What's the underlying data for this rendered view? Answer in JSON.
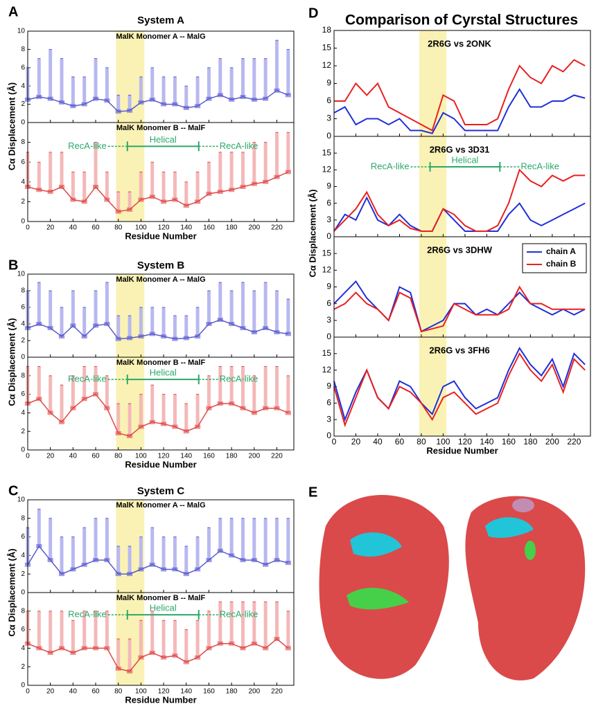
{
  "chart_data": [
    {
      "type": "box",
      "panel_label": "A",
      "title": "System A",
      "y_label": "Cα Displacement (Å)",
      "x_label": "Residue Number",
      "xlim": [
        0,
        235
      ],
      "xticks": [
        0,
        20,
        40,
        60,
        80,
        100,
        120,
        140,
        160,
        180,
        200,
        220
      ],
      "highlight": [
        78,
        103
      ],
      "x": [
        0,
        10,
        20,
        30,
        40,
        50,
        60,
        70,
        80,
        90,
        100,
        110,
        120,
        130,
        140,
        150,
        160,
        170,
        180,
        190,
        200,
        210,
        220,
        230
      ],
      "subplots": [
        {
          "label": "MalK Monomer A -- MalG",
          "color": "#5a5ad0",
          "whisker_color": "#b8b8f0",
          "ylim": [
            0,
            10
          ],
          "yticks": [
            0,
            2,
            4,
            6,
            8,
            10
          ],
          "values": [
            2.5,
            2.8,
            2.6,
            2.2,
            1.8,
            2.0,
            2.6,
            2.4,
            1.2,
            1.3,
            2.2,
            2.5,
            2.0,
            2.0,
            1.6,
            1.8,
            2.6,
            3.0,
            2.5,
            2.8,
            2.5,
            2.6,
            3.5,
            3.0
          ],
          "upper": [
            6,
            7,
            8,
            7,
            5,
            5,
            7,
            6,
            3,
            3,
            5,
            6,
            5,
            5,
            4,
            5,
            6,
            7,
            6,
            7,
            7,
            7,
            9,
            8
          ]
        },
        {
          "label": "MalK Monomer B -- MalF",
          "color": "#e04848",
          "whisker_color": "#f4b8b8",
          "ylim": [
            0,
            10
          ],
          "yticks": [
            0,
            2,
            4,
            6,
            8
          ],
          "values": [
            3.5,
            3.2,
            3.0,
            3.5,
            2.2,
            2.0,
            3.5,
            2.2,
            1.0,
            1.2,
            2.2,
            2.5,
            2.0,
            2.2,
            1.6,
            2.0,
            2.8,
            3.0,
            3.2,
            3.5,
            3.8,
            4.0,
            4.5,
            5.0
          ],
          "upper": [
            7,
            6,
            7,
            7,
            5,
            5,
            8,
            5,
            3,
            3,
            5,
            6,
            5,
            5,
            4,
            5,
            6,
            7,
            7,
            7,
            8,
            8,
            9,
            9
          ],
          "annotations": {
            "left": "RecA-like",
            "middle": "Helical",
            "right": "RecA-like",
            "helical_range": [
              88,
              151
            ]
          }
        }
      ]
    },
    {
      "type": "box",
      "panel_label": "B",
      "title": "System B",
      "y_label": "Cα Displacement (Å)",
      "x_label": "Residue Number",
      "xlim": [
        0,
        235
      ],
      "xticks": [
        0,
        20,
        40,
        60,
        80,
        100,
        120,
        140,
        160,
        180,
        200,
        220
      ],
      "highlight": [
        78,
        103
      ],
      "x": [
        0,
        10,
        20,
        30,
        40,
        50,
        60,
        70,
        80,
        90,
        100,
        110,
        120,
        130,
        140,
        150,
        160,
        170,
        180,
        190,
        200,
        210,
        220,
        230
      ],
      "subplots": [
        {
          "label": "MalK Monomer A -- MalG",
          "color": "#5a5ad0",
          "whisker_color": "#b8b8f0",
          "ylim": [
            0,
            10
          ],
          "yticks": [
            0,
            2,
            4,
            6,
            8,
            10
          ],
          "values": [
            3.5,
            4.0,
            3.5,
            2.5,
            3.8,
            2.5,
            3.8,
            4.0,
            2.2,
            2.3,
            2.5,
            2.8,
            2.5,
            2.2,
            2.3,
            2.5,
            4.0,
            4.5,
            4.0,
            3.5,
            3.0,
            3.5,
            3.0,
            2.8
          ],
          "upper": [
            8,
            9,
            8,
            6,
            8,
            6,
            8,
            9,
            5,
            5,
            6,
            6,
            6,
            5,
            5,
            6,
            8,
            9,
            8,
            9,
            8,
            9,
            8,
            7
          ]
        },
        {
          "label": "MalK Monomer B -- MalF",
          "color": "#e04848",
          "whisker_color": "#f4b8b8",
          "ylim": [
            0,
            10
          ],
          "yticks": [
            0,
            2,
            4,
            6,
            8
          ],
          "values": [
            5.0,
            5.5,
            4.0,
            3.0,
            4.5,
            5.5,
            6.0,
            4.5,
            1.8,
            1.5,
            2.5,
            3.0,
            2.8,
            2.5,
            2.0,
            2.5,
            4.5,
            5.0,
            5.0,
            4.5,
            4.0,
            4.5,
            4.5,
            4.0
          ],
          "upper": [
            9,
            9,
            8,
            7,
            8,
            9,
            9,
            8,
            5,
            5,
            6,
            7,
            6,
            6,
            5,
            6,
            8,
            9,
            9,
            9,
            8,
            9,
            9,
            8
          ],
          "annotations": {
            "left": "RecA-like",
            "middle": "Helical",
            "right": "RecA-like",
            "helical_range": [
              88,
              151
            ]
          }
        }
      ]
    },
    {
      "type": "box",
      "panel_label": "C",
      "title": "System C",
      "y_label": "Cα Displacement (Å)",
      "x_label": "Residue Number",
      "xlim": [
        0,
        235
      ],
      "xticks": [
        0,
        20,
        40,
        60,
        80,
        100,
        120,
        140,
        160,
        180,
        200,
        220
      ],
      "highlight": [
        78,
        103
      ],
      "x": [
        0,
        10,
        20,
        30,
        40,
        50,
        60,
        70,
        80,
        90,
        100,
        110,
        120,
        130,
        140,
        150,
        160,
        170,
        180,
        190,
        200,
        210,
        220,
        230
      ],
      "subplots": [
        {
          "label": "MalK Monomer A -- MalG",
          "color": "#5a5ad0",
          "whisker_color": "#b8b8f0",
          "ylim": [
            0,
            10
          ],
          "yticks": [
            0,
            2,
            4,
            6,
            8,
            10
          ],
          "values": [
            3.0,
            5.0,
            3.5,
            2.0,
            2.5,
            3.0,
            3.5,
            3.5,
            2.0,
            2.0,
            2.5,
            3.0,
            2.5,
            2.5,
            2.0,
            2.5,
            3.5,
            4.5,
            4.0,
            3.5,
            3.5,
            3.0,
            3.5,
            3.2
          ],
          "upper": [
            7,
            9,
            8,
            6,
            6,
            7,
            8,
            8,
            5,
            5,
            6,
            7,
            6,
            6,
            5,
            6,
            7,
            8,
            8,
            8,
            8,
            8,
            8,
            8
          ]
        },
        {
          "label": "MalK Monomer B -- MalF",
          "color": "#e04848",
          "whisker_color": "#f4b8b8",
          "ylim": [
            0,
            10
          ],
          "yticks": [
            0,
            2,
            4,
            6,
            8
          ],
          "values": [
            4.5,
            4.0,
            3.5,
            4.0,
            3.5,
            4.0,
            4.0,
            4.0,
            1.8,
            1.5,
            3.0,
            3.5,
            3.0,
            3.2,
            2.5,
            3.0,
            4.0,
            4.5,
            4.5,
            4.0,
            4.5,
            4.0,
            5.0,
            4.0
          ],
          "upper": [
            8,
            8,
            8,
            8,
            7,
            8,
            8,
            8,
            5,
            5,
            7,
            8,
            7,
            7,
            6,
            7,
            8,
            9,
            9,
            9,
            9,
            9,
            9,
            8
          ],
          "annotations": {
            "left": "RecA-like",
            "middle": "Helical",
            "right": "RecA-like",
            "helical_range": [
              88,
              151
            ]
          }
        }
      ]
    },
    {
      "type": "line",
      "panel_label": "D",
      "title": "Comparison of Cyrstal Structures",
      "y_label": "Cα Displacement (Å)",
      "x_label": "Residue Number",
      "xlim": [
        0,
        235
      ],
      "xticks": [
        0,
        20,
        40,
        60,
        80,
        100,
        120,
        140,
        160,
        180,
        200,
        220
      ],
      "highlight": [
        78,
        103
      ],
      "x": [
        0,
        10,
        20,
        30,
        40,
        50,
        60,
        70,
        80,
        90,
        100,
        110,
        120,
        130,
        140,
        150,
        160,
        170,
        180,
        190,
        200,
        210,
        220,
        230
      ],
      "subplots": [
        {
          "label": "2R6G vs 2ONK",
          "ylim": [
            0,
            18
          ],
          "yticks": [
            0,
            3,
            6,
            9,
            12,
            15,
            18
          ],
          "series": [
            {
              "name": "chain A",
              "color": "#1f2fd8",
              "values": [
                4,
                5,
                2,
                3,
                3,
                2,
                3,
                1,
                1,
                0.5,
                4,
                3,
                1,
                1,
                1,
                1,
                5,
                8,
                5,
                5,
                6,
                6,
                7,
                6.5
              ]
            },
            {
              "name": "chain B",
              "color": "#e82020",
              "values": [
                6,
                6,
                9,
                7,
                9,
                5,
                4,
                3,
                2,
                1,
                7,
                6,
                2,
                2,
                2,
                3,
                8,
                12,
                10,
                9,
                12,
                11,
                13,
                12
              ]
            }
          ]
        },
        {
          "label": "2R6G vs 3D31",
          "ylim": [
            0,
            18
          ],
          "yticks": [
            0,
            3,
            6,
            9,
            12,
            15
          ],
          "series": [
            {
              "name": "chain A",
              "color": "#1f2fd8",
              "values": [
                1,
                4,
                3,
                7,
                3,
                2,
                4,
                2,
                1,
                1,
                5,
                3,
                1,
                1,
                1,
                1,
                4,
                6,
                3,
                2,
                3,
                4,
                5,
                6
              ]
            },
            {
              "name": "chain B",
              "color": "#e82020",
              "values": [
                1,
                3,
                5,
                8,
                4,
                2,
                3,
                1.5,
                1,
                1,
                5,
                4,
                2,
                1,
                1,
                2,
                6,
                12,
                10,
                9,
                11,
                10,
                11,
                11
              ]
            }
          ],
          "annotations": {
            "left": "RecA-like",
            "middle": "Helical",
            "right": "RecA-like",
            "helical_range": [
              88,
              152
            ]
          }
        },
        {
          "label": "2R6G vs 3DHW",
          "ylim": [
            0,
            18
          ],
          "yticks": [
            0,
            3,
            6,
            9,
            12,
            15
          ],
          "legend": "upper right",
          "series": [
            {
              "name": "chain A",
              "color": "#1f2fd8",
              "values": [
                6,
                8,
                10,
                7,
                5,
                3,
                9,
                8,
                1,
                2,
                3,
                6,
                6,
                4,
                5,
                4,
                6,
                8,
                6,
                5,
                4,
                5,
                4,
                5
              ]
            },
            {
              "name": "chain B",
              "color": "#e82020",
              "values": [
                5,
                6,
                8,
                6,
                5,
                3,
                8,
                7,
                1,
                1.5,
                2,
                6,
                5,
                4,
                4,
                4,
                5,
                9,
                6,
                6,
                5,
                5,
                5,
                5
              ]
            }
          ]
        },
        {
          "label": "2R6G vs 3FH6",
          "ylim": [
            0,
            18
          ],
          "yticks": [
            0,
            3,
            6,
            9,
            12,
            15
          ],
          "series": [
            {
              "name": "chain A",
              "color": "#1f2fd8",
              "values": [
                10,
                3,
                8,
                12,
                7,
                5,
                10,
                9,
                6,
                4,
                9,
                10,
                7,
                5,
                6,
                7,
                12,
                16,
                13,
                11,
                14,
                9,
                15,
                13
              ]
            },
            {
              "name": "chain B",
              "color": "#e82020",
              "values": [
                9,
                2,
                7,
                12,
                7,
                5,
                9,
                8,
                6,
                3,
                7,
                8,
                6,
                4,
                5,
                6,
                11,
                15,
                12,
                10,
                13,
                8,
                14,
                12
              ]
            }
          ]
        }
      ]
    }
  ],
  "image_panel": {
    "label": "E"
  }
}
